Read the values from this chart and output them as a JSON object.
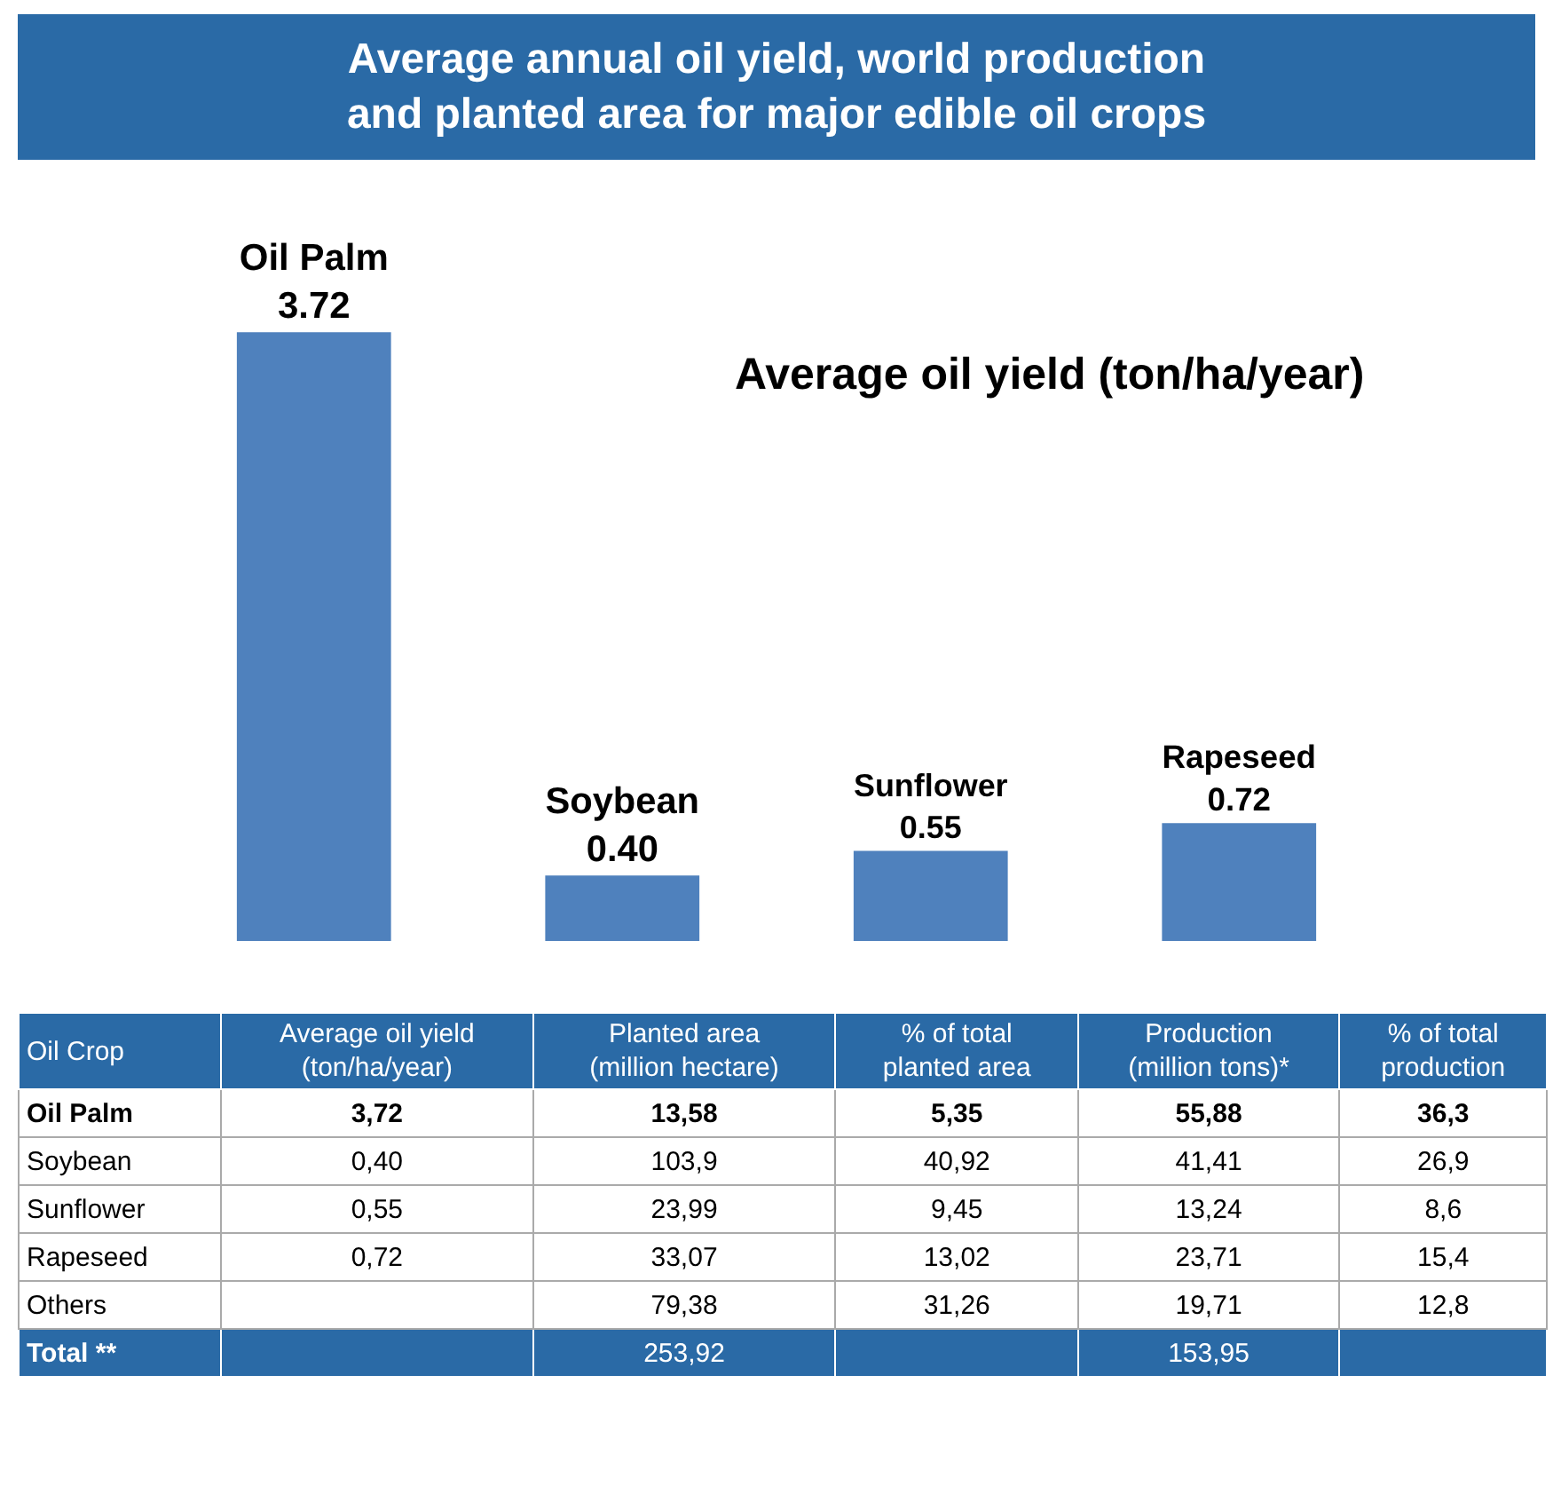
{
  "chart_data": [
    {
      "type": "bar",
      "title": "Average annual oil yield, world production\nand planted area for major edible oil crops",
      "subtitle": "Average oil yield (ton/ha/year)",
      "categories": [
        "Oil Palm",
        "Soybean",
        "Sunflower",
        "Rapeseed"
      ],
      "values": [
        3.72,
        0.4,
        0.55,
        0.72
      ],
      "value_labels": [
        "3.72",
        "0.40",
        "0.55",
        "0.72"
      ],
      "color": "#4f81bd"
    },
    {
      "type": "other",
      "ylabel": "Oil Crop",
      "categories": [
        "Oil Palm",
        "Soybean",
        "Sunflower",
        "Rapeseed",
        "Others",
        "Total  **"
      ],
      "series": [
        {
          "name": "Average oil yield\n(ton/ha/year)",
          "values": [
            3.72,
            0.4,
            0.55,
            0.72,
            null,
            null
          ],
          "value_labels": [
            "3,72",
            "0,40",
            "0,55",
            "0,72",
            null,
            null
          ]
        },
        {
          "name": "Planted area\n(million hectare)",
          "values": [
            13.58,
            103.9,
            23.99,
            33.07,
            79.38,
            253.92
          ],
          "value_labels": [
            "13,58",
            "103,9",
            "23,99",
            "33,07",
            "79,38",
            "253,92"
          ]
        },
        {
          "name": "% of total\nplanted area",
          "values": [
            5.35,
            40.92,
            9.45,
            13.02,
            31.26,
            null
          ],
          "value_labels": [
            "5,35",
            "40,92",
            "9,45",
            "13,02",
            "31,26",
            null
          ]
        },
        {
          "name": "Production\n(million tons)*",
          "values": [
            55.88,
            41.41,
            13.24,
            23.71,
            19.71,
            153.95
          ],
          "value_labels": [
            "55,88",
            "41,41",
            "13,24",
            "23,71",
            "19,71",
            "153,95"
          ]
        },
        {
          "name": "% of total\nproduction",
          "values": [
            36.3,
            26.9,
            8.6,
            15.4,
            12.8,
            null
          ],
          "value_labels": [
            "36,3",
            "26,9",
            "8,6",
            "15,4",
            "12,8",
            null
          ]
        }
      ]
    }
  ]
}
